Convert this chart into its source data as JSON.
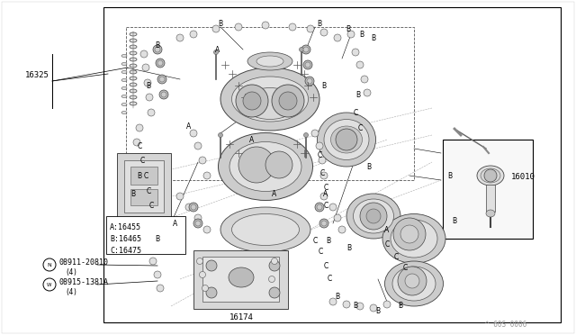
{
  "bg_color": "#ffffff",
  "fig_width": 6.4,
  "fig_height": 3.72,
  "dpi": 100,
  "watermark": "^ 60S 0006",
  "part_16325": "16325",
  "part_16010": "16010",
  "part_16174": "16174",
  "label_A": "A:16455",
  "label_B": "B:16465",
  "label_C": "C:16475",
  "bolt1_circle": "N",
  "bolt1_num": "08911-20810",
  "bolt1_qty": "(4)",
  "bolt2_circle": "W",
  "bolt2_num": "08915-1381A",
  "bolt2_qty": "(4)",
  "text_color": "#000000",
  "line_color": "#000000",
  "gray_dark": "#888888",
  "gray_mid": "#aaaaaa",
  "gray_light": "#cccccc",
  "gray_xlight": "#e0e0e0"
}
